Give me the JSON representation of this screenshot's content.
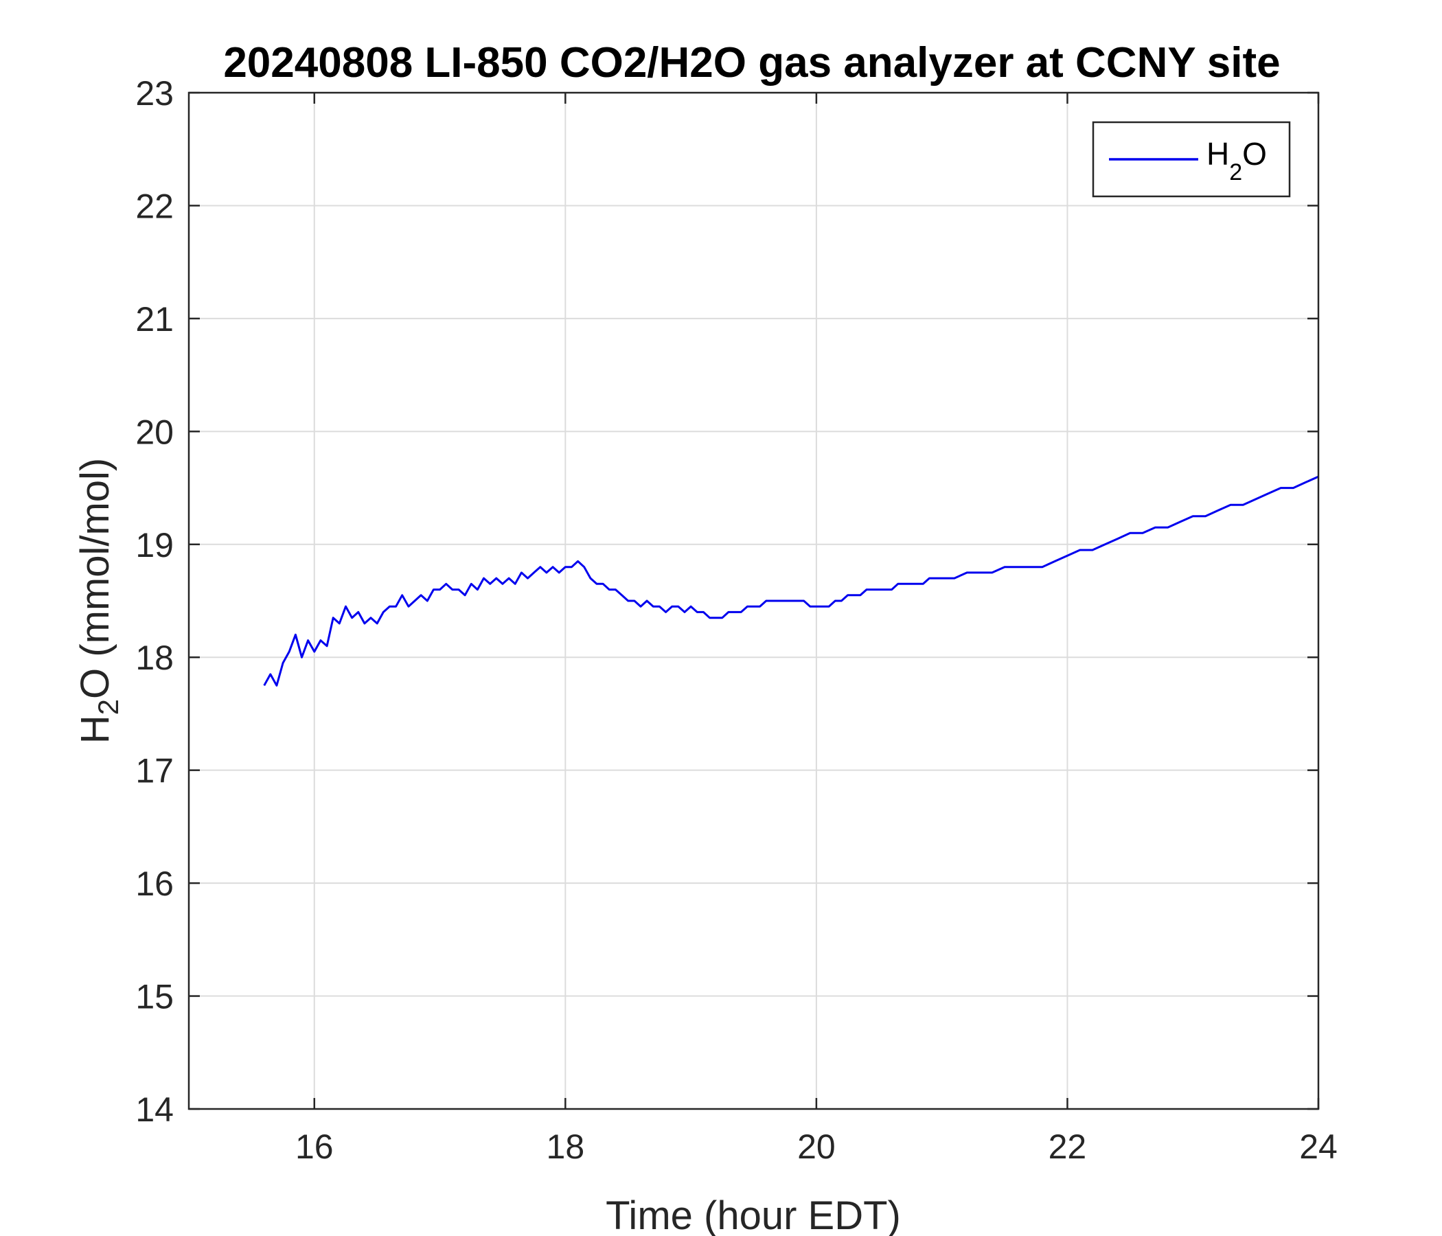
{
  "chart_data": {
    "type": "line",
    "title": "20240808 LI-850 CO2/H2O gas analyzer at CCNY site",
    "xlabel": "Time (hour EDT)",
    "ylabel": {
      "pre": "H",
      "sub": "2",
      "post": "O (mmol/mol)"
    },
    "xlim": [
      15,
      24
    ],
    "ylim": [
      14,
      23
    ],
    "xticks": [
      16,
      18,
      20,
      22,
      24
    ],
    "yticks": [
      14,
      15,
      16,
      17,
      18,
      19,
      20,
      21,
      22,
      23
    ],
    "grid": true,
    "legend_position": "top-right",
    "series": [
      {
        "legend": {
          "pre": "H",
          "sub": "2",
          "post": "O"
        },
        "color": "#0000ee",
        "x": [
          15.6,
          15.65,
          15.7,
          15.75,
          15.8,
          15.85,
          15.9,
          15.95,
          16.0,
          16.05,
          16.1,
          16.15,
          16.2,
          16.25,
          16.3,
          16.35,
          16.4,
          16.45,
          16.5,
          16.55,
          16.6,
          16.65,
          16.7,
          16.75,
          16.8,
          16.85,
          16.9,
          16.95,
          17.0,
          17.05,
          17.1,
          17.15,
          17.2,
          17.25,
          17.3,
          17.35,
          17.4,
          17.45,
          17.5,
          17.55,
          17.6,
          17.65,
          17.7,
          17.75,
          17.8,
          17.85,
          17.9,
          17.95,
          18.0,
          18.05,
          18.1,
          18.15,
          18.2,
          18.25,
          18.3,
          18.35,
          18.4,
          18.45,
          18.5,
          18.55,
          18.6,
          18.65,
          18.7,
          18.75,
          18.8,
          18.85,
          18.9,
          18.95,
          19.0,
          19.05,
          19.1,
          19.15,
          19.2,
          19.25,
          19.3,
          19.35,
          19.4,
          19.45,
          19.5,
          19.55,
          19.6,
          19.65,
          19.7,
          19.75,
          19.8,
          19.85,
          19.9,
          19.95,
          20.0,
          20.05,
          20.1,
          20.15,
          20.2,
          20.25,
          20.3,
          20.35,
          20.4,
          20.45,
          20.5,
          20.55,
          20.6,
          20.65,
          20.7,
          20.75,
          20.8,
          20.85,
          20.9,
          20.95,
          21.0,
          21.1,
          21.2,
          21.3,
          21.4,
          21.5,
          21.6,
          21.7,
          21.8,
          21.9,
          22.0,
          22.1,
          22.2,
          22.3,
          22.4,
          22.5,
          22.6,
          22.7,
          22.8,
          22.9,
          23.0,
          23.1,
          23.2,
          23.3,
          23.4,
          23.5,
          23.6,
          23.7,
          23.8,
          23.9,
          24.0
        ],
        "y": [
          17.75,
          17.85,
          17.75,
          17.95,
          18.05,
          18.2,
          18.0,
          18.15,
          18.05,
          18.15,
          18.1,
          18.35,
          18.3,
          18.45,
          18.35,
          18.4,
          18.3,
          18.35,
          18.3,
          18.4,
          18.45,
          18.45,
          18.55,
          18.45,
          18.5,
          18.55,
          18.5,
          18.6,
          18.6,
          18.65,
          18.6,
          18.6,
          18.55,
          18.65,
          18.6,
          18.7,
          18.65,
          18.7,
          18.65,
          18.7,
          18.65,
          18.75,
          18.7,
          18.75,
          18.8,
          18.75,
          18.8,
          18.75,
          18.8,
          18.8,
          18.85,
          18.8,
          18.7,
          18.65,
          18.65,
          18.6,
          18.6,
          18.55,
          18.5,
          18.5,
          18.45,
          18.5,
          18.45,
          18.45,
          18.4,
          18.45,
          18.45,
          18.4,
          18.45,
          18.4,
          18.4,
          18.35,
          18.35,
          18.35,
          18.4,
          18.4,
          18.4,
          18.45,
          18.45,
          18.45,
          18.5,
          18.5,
          18.5,
          18.5,
          18.5,
          18.5,
          18.5,
          18.45,
          18.45,
          18.45,
          18.45,
          18.5,
          18.5,
          18.55,
          18.55,
          18.55,
          18.6,
          18.6,
          18.6,
          18.6,
          18.6,
          18.65,
          18.65,
          18.65,
          18.65,
          18.65,
          18.7,
          18.7,
          18.7,
          18.7,
          18.75,
          18.75,
          18.75,
          18.8,
          18.8,
          18.8,
          18.8,
          18.85,
          18.9,
          18.95,
          18.95,
          19.0,
          19.05,
          19.1,
          19.1,
          19.15,
          19.15,
          19.2,
          19.25,
          19.25,
          19.3,
          19.35,
          19.35,
          19.4,
          19.45,
          19.5,
          19.5,
          19.55,
          19.6
        ]
      }
    ]
  }
}
